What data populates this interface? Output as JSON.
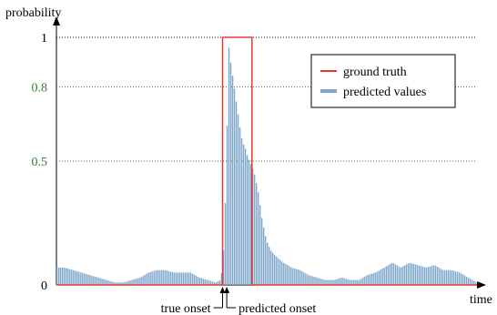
{
  "chart_data": {
    "type": "bar",
    "title": "",
    "xlabel": "time",
    "ylabel": "probability",
    "ylim": [
      0,
      1
    ],
    "y_ticks": [
      {
        "value": 0,
        "label": "0",
        "color": "#000000"
      },
      {
        "value": 0.5,
        "label": "0.5",
        "color": "#2e7d32"
      },
      {
        "value": 0.8,
        "label": "0.8",
        "color": "#2e7d32"
      },
      {
        "value": 1,
        "label": "1",
        "color": "#000000"
      }
    ],
    "grid": {
      "style": "dotted",
      "colors": {
        "0.5": "#2e7d32",
        "0.8": "#2e7d32",
        "1": "#000000"
      }
    },
    "legend_position": "top-right",
    "series": [
      {
        "name": "ground truth",
        "type": "step",
        "color": "#e53935",
        "t": [
          0,
          0.395,
          0.395,
          0.465,
          0.465,
          1
        ],
        "values": [
          0,
          0,
          1,
          1,
          0,
          0
        ]
      },
      {
        "name": "predicted values",
        "type": "bar",
        "color": "#7fa7cc",
        "t": [
          0.0,
          0.02,
          0.04,
          0.06,
          0.08,
          0.1,
          0.12,
          0.14,
          0.16,
          0.18,
          0.2,
          0.22,
          0.24,
          0.26,
          0.28,
          0.3,
          0.32,
          0.34,
          0.36,
          0.38,
          0.39,
          0.395,
          0.4,
          0.405,
          0.41,
          0.415,
          0.42,
          0.425,
          0.43,
          0.435,
          0.44,
          0.445,
          0.45,
          0.455,
          0.46,
          0.465,
          0.47,
          0.48,
          0.49,
          0.5,
          0.51,
          0.52,
          0.54,
          0.56,
          0.58,
          0.6,
          0.62,
          0.64,
          0.66,
          0.68,
          0.7,
          0.72,
          0.74,
          0.76,
          0.78,
          0.8,
          0.82,
          0.84,
          0.86,
          0.88,
          0.9,
          0.92,
          0.94,
          0.96,
          0.98,
          1.0
        ],
        "values": [
          0.07,
          0.07,
          0.06,
          0.05,
          0.04,
          0.03,
          0.02,
          0.01,
          0.01,
          0.02,
          0.03,
          0.05,
          0.06,
          0.06,
          0.05,
          0.05,
          0.05,
          0.03,
          0.02,
          0.01,
          0.02,
          0.06,
          0.2,
          0.5,
          0.97,
          0.9,
          0.84,
          0.78,
          0.72,
          0.66,
          0.6,
          0.57,
          0.55,
          0.52,
          0.5,
          0.48,
          0.46,
          0.38,
          0.26,
          0.18,
          0.14,
          0.12,
          0.09,
          0.07,
          0.06,
          0.04,
          0.03,
          0.02,
          0.02,
          0.03,
          0.02,
          0.02,
          0.04,
          0.05,
          0.07,
          0.09,
          0.07,
          0.09,
          0.08,
          0.07,
          0.08,
          0.06,
          0.06,
          0.05,
          0.03,
          0.01
        ]
      }
    ],
    "annotations": [
      {
        "text": "true onset",
        "t": 0.395,
        "arrow": "up",
        "side": "left"
      },
      {
        "text": "predicted onset",
        "t": 0.405,
        "arrow": "up",
        "side": "right"
      }
    ]
  }
}
